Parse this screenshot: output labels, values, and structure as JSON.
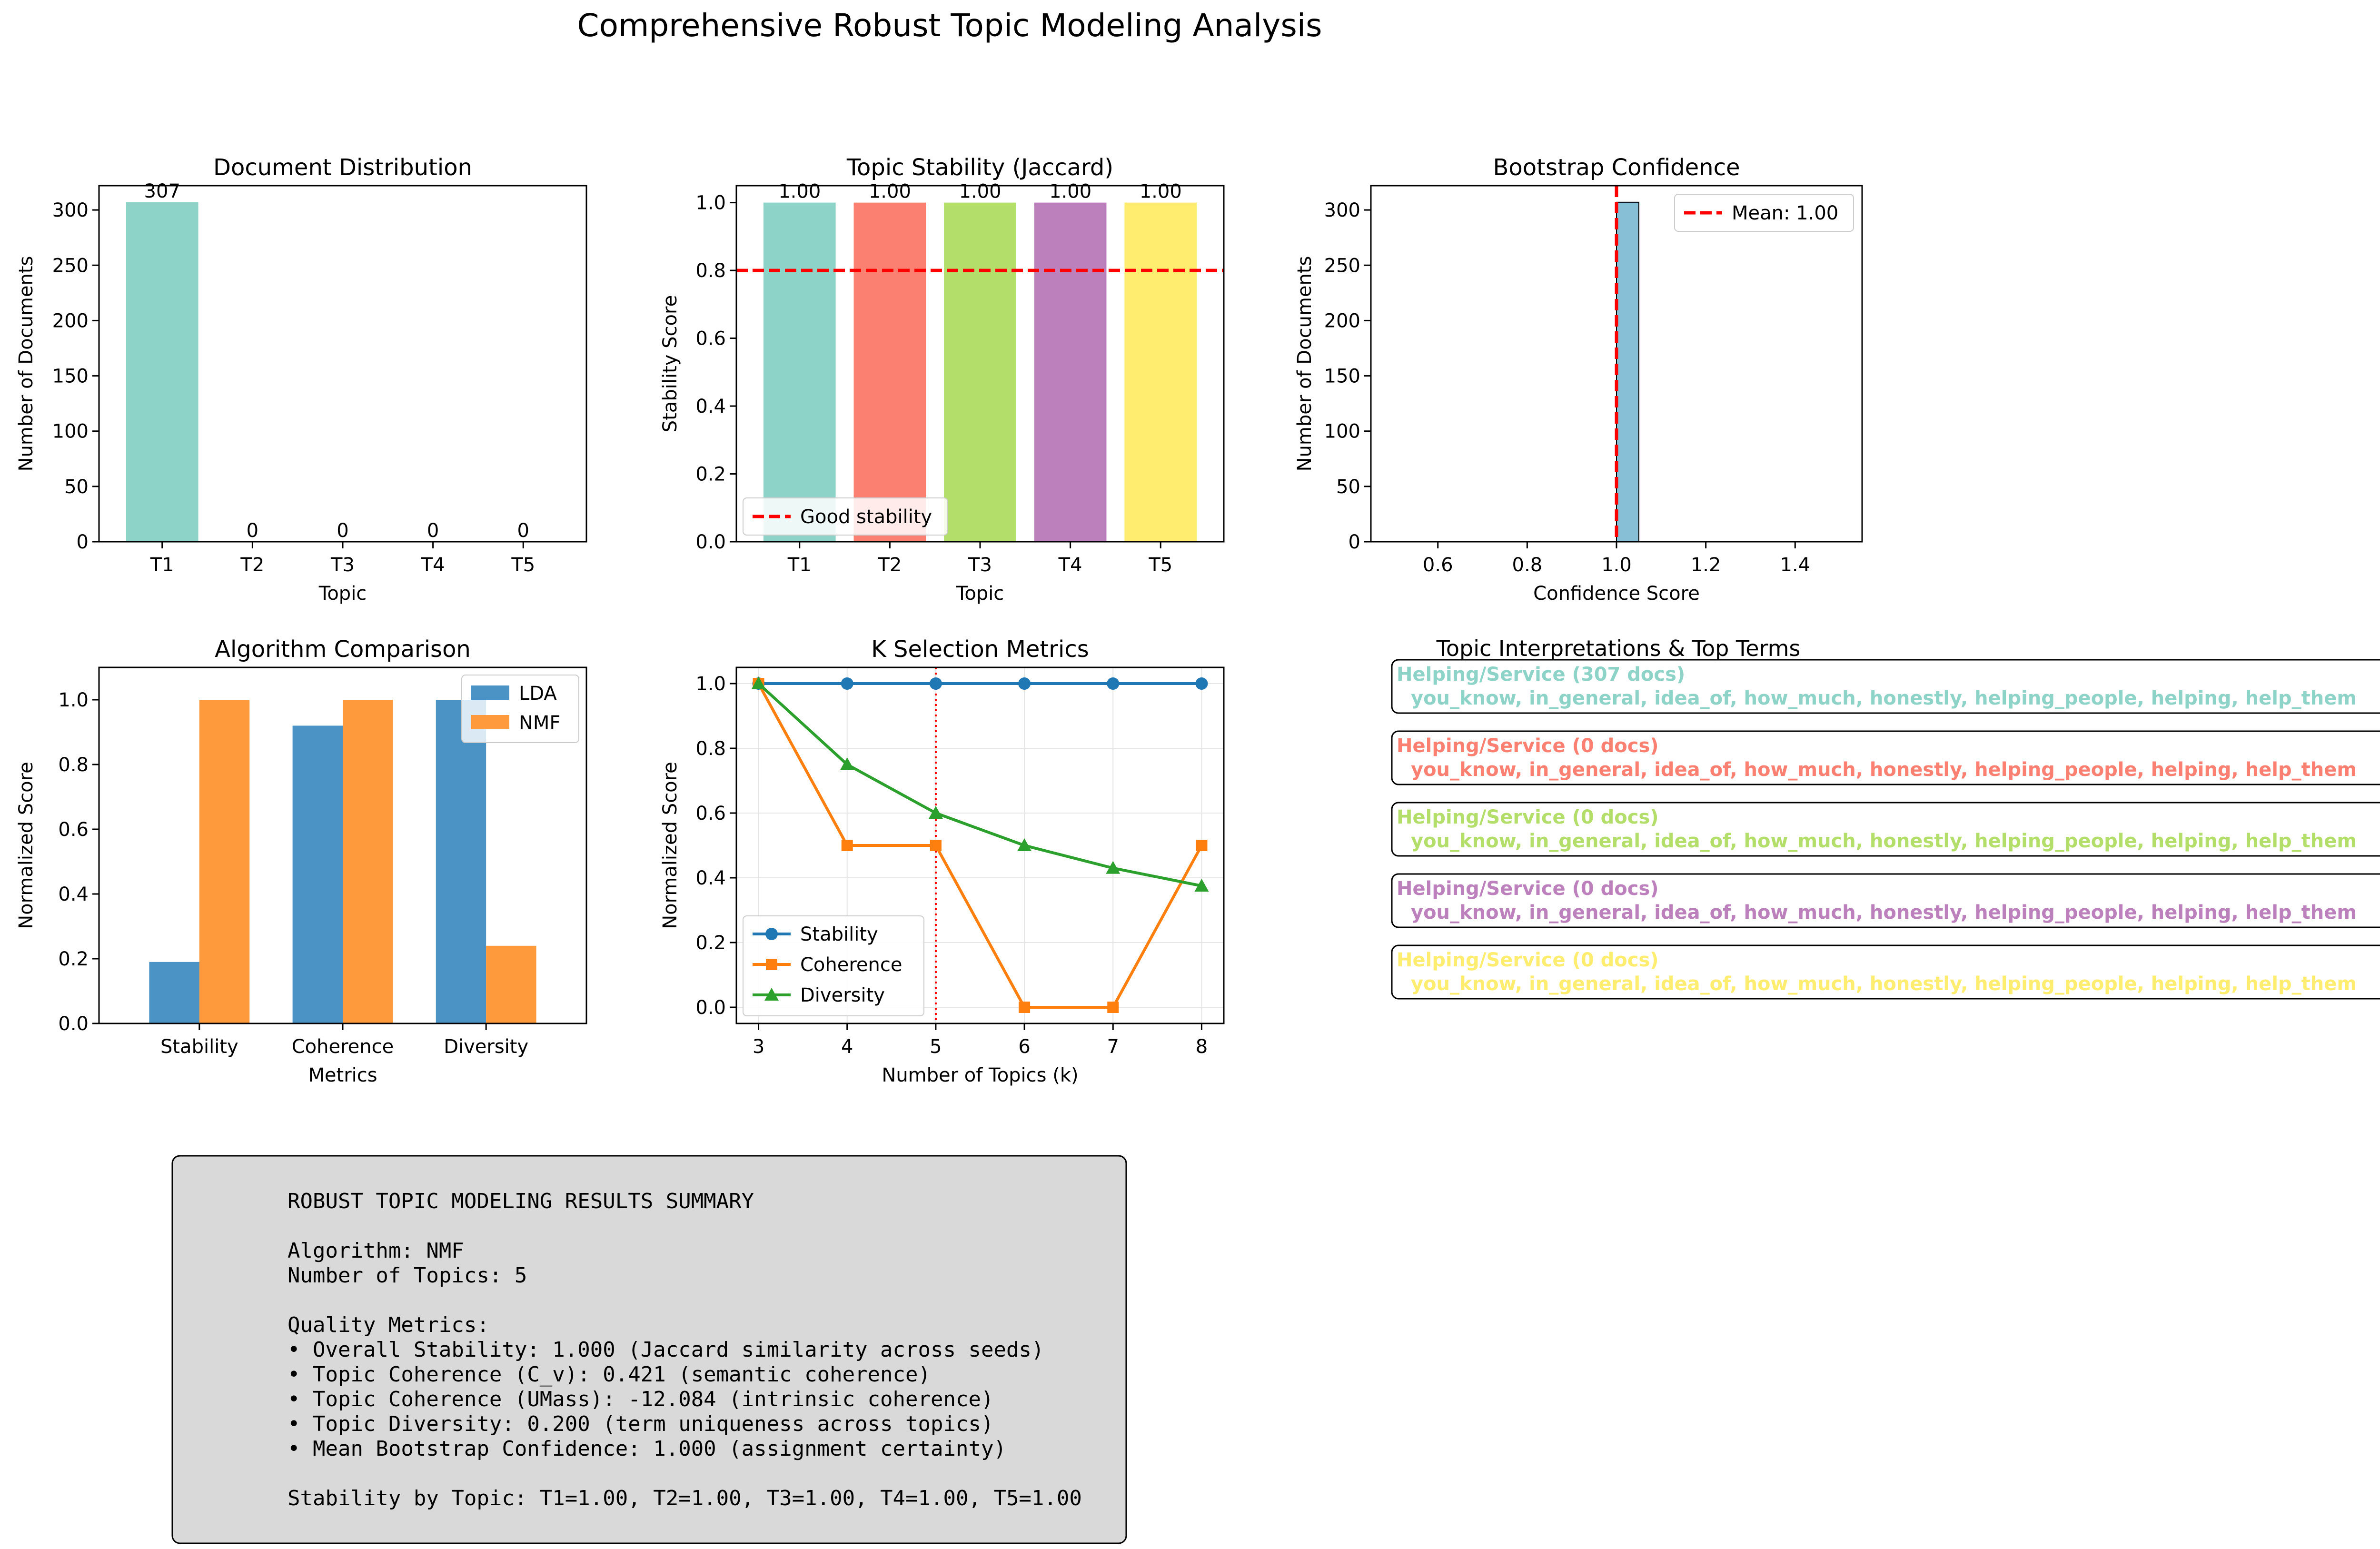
{
  "figure": {
    "title": "Comprehensive Robust Topic Modeling Analysis",
    "topic_colors": [
      "#8dd3c7",
      "#fb8072",
      "#b3de69",
      "#bc80bd",
      "#ffed6f"
    ],
    "interp_title": "Topic Interpretations & Top Terms"
  },
  "chart_data": [
    {
      "id": "doc_dist",
      "type": "bar",
      "title": "Document Distribution",
      "xlabel": "Topic",
      "ylabel": "Number of Documents",
      "categories": [
        "T1",
        "T2",
        "T3",
        "T4",
        "T5"
      ],
      "values": [
        307,
        0,
        0,
        0,
        0
      ],
      "value_labels": [
        "307",
        "0",
        "0",
        "0",
        "0"
      ],
      "ylim": [
        0,
        322
      ],
      "yticks": [
        0,
        50,
        100,
        150,
        200,
        250,
        300
      ],
      "colors": [
        "#8dd3c7",
        "#8dd3c7",
        "#8dd3c7",
        "#8dd3c7",
        "#8dd3c7"
      ]
    },
    {
      "id": "stability",
      "type": "bar",
      "title": "Topic Stability (Jaccard)",
      "xlabel": "Topic",
      "ylabel": "Stability Score",
      "categories": [
        "T1",
        "T2",
        "T3",
        "T4",
        "T5"
      ],
      "values": [
        1.0,
        1.0,
        1.0,
        1.0,
        1.0
      ],
      "value_labels": [
        "1.00",
        "1.00",
        "1.00",
        "1.00",
        "1.00"
      ],
      "ylim": [
        0,
        1.05
      ],
      "yticks": [
        0.0,
        0.2,
        0.4,
        0.6,
        0.8,
        1.0
      ],
      "colors": [
        "#8dd3c7",
        "#fb8072",
        "#b3de69",
        "#bc80bd",
        "#ffed6f"
      ],
      "hline": {
        "y": 0.8,
        "label": "Good stability",
        "color": "#ff0000"
      },
      "legend": "lower-left"
    },
    {
      "id": "bootstrap",
      "type": "bar",
      "title": "Bootstrap Confidence",
      "xlabel": "Confidence Score",
      "ylabel": "Number of Documents",
      "bins": [
        {
          "x0": 1.0,
          "x1": 1.05,
          "count": 307
        }
      ],
      "xlim": [
        0.45,
        1.55
      ],
      "xticks": [
        0.6,
        0.8,
        1.0,
        1.2,
        1.4
      ],
      "ylim": [
        0,
        322
      ],
      "yticks": [
        0,
        50,
        100,
        150,
        200,
        250,
        300
      ],
      "bar_color": "#87c0d6",
      "vline": {
        "x": 1.0,
        "label": "Mean: 1.00",
        "color": "#ff0000"
      },
      "legend": "upper-right"
    },
    {
      "id": "algo",
      "type": "bar",
      "title": "Algorithm Comparison",
      "xlabel": "Metrics",
      "ylabel": "Normalized Score",
      "categories": [
        "Stability",
        "Coherence",
        "Diversity"
      ],
      "series": [
        {
          "name": "LDA",
          "values": [
            0.19,
            0.92,
            1.0
          ],
          "color": "#4c93c5"
        },
        {
          "name": "NMF",
          "values": [
            1.0,
            1.0,
            0.24
          ],
          "color": "#ff9a3c"
        }
      ],
      "ylim": [
        0,
        1.1
      ],
      "yticks": [
        0.0,
        0.2,
        0.4,
        0.6,
        0.8,
        1.0
      ],
      "legend": "upper-right"
    },
    {
      "id": "kselect",
      "type": "line",
      "title": "K Selection Metrics",
      "xlabel": "Number of Topics (k)",
      "ylabel": "Normalized Score",
      "x": [
        3,
        4,
        5,
        6,
        7,
        8
      ],
      "series": [
        {
          "name": "Stability",
          "values": [
            1.0,
            1.0,
            1.0,
            1.0,
            1.0,
            1.0
          ],
          "color": "#1f77b4",
          "marker": "circle"
        },
        {
          "name": "Coherence",
          "values": [
            1.0,
            0.5,
            0.5,
            0.0,
            0.0,
            0.5
          ],
          "color": "#ff7f0e",
          "marker": "square"
        },
        {
          "name": "Diversity",
          "values": [
            1.0,
            0.75,
            0.6,
            0.5,
            0.43,
            0.375
          ],
          "color": "#2ca02c",
          "marker": "triangle"
        }
      ],
      "xlim": [
        2.75,
        8.25
      ],
      "xticks": [
        3,
        4,
        5,
        6,
        7,
        8
      ],
      "ylim": [
        -0.05,
        1.05
      ],
      "yticks": [
        0.0,
        0.2,
        0.4,
        0.6,
        0.8,
        1.0
      ],
      "vline": {
        "x": 5,
        "color": "#ff0000"
      },
      "grid": true,
      "legend": "lower-left"
    }
  ],
  "interpretations": [
    {
      "header": "Helping/Service (307 docs)",
      "terms": "you_know, in_general, idea_of, how_much, honestly, helping_people, helping, help_them",
      "color": "#8dd3c7"
    },
    {
      "header": "Helping/Service (0 docs)",
      "terms": "you_know, in_general, idea_of, how_much, honestly, helping_people, helping, help_them",
      "color": "#fb8072"
    },
    {
      "header": "Helping/Service (0 docs)",
      "terms": "you_know, in_general, idea_of, how_much, honestly, helping_people, helping, help_them",
      "color": "#b3de69"
    },
    {
      "header": "Helping/Service (0 docs)",
      "terms": "you_know, in_general, idea_of, how_much, honestly, helping_people, helping, help_them",
      "color": "#bc80bd"
    },
    {
      "header": "Helping/Service (0 docs)",
      "terms": "you_know, in_general, idea_of, how_much, honestly, helping_people, helping, help_them",
      "color": "#ffed6f"
    }
  ],
  "summary": {
    "lines": [
      "ROBUST TOPIC MODELING RESULTS SUMMARY",
      "",
      "Algorithm: NMF",
      "Number of Topics: 5",
      "",
      "Quality Metrics:",
      "• Overall Stability: 1.000 (Jaccard similarity across seeds)",
      "• Topic Coherence (C_v): 0.421 (semantic coherence)",
      "• Topic Coherence (UMass): -12.084 (intrinsic coherence)",
      "• Topic Diversity: 0.200 (term uniqueness across topics)",
      "• Mean Bootstrap Confidence: 1.000 (assignment certainty)",
      "",
      "Stability by Topic: T1=1.00, T2=1.00, T3=1.00, T4=1.00, T5=1.00"
    ]
  }
}
